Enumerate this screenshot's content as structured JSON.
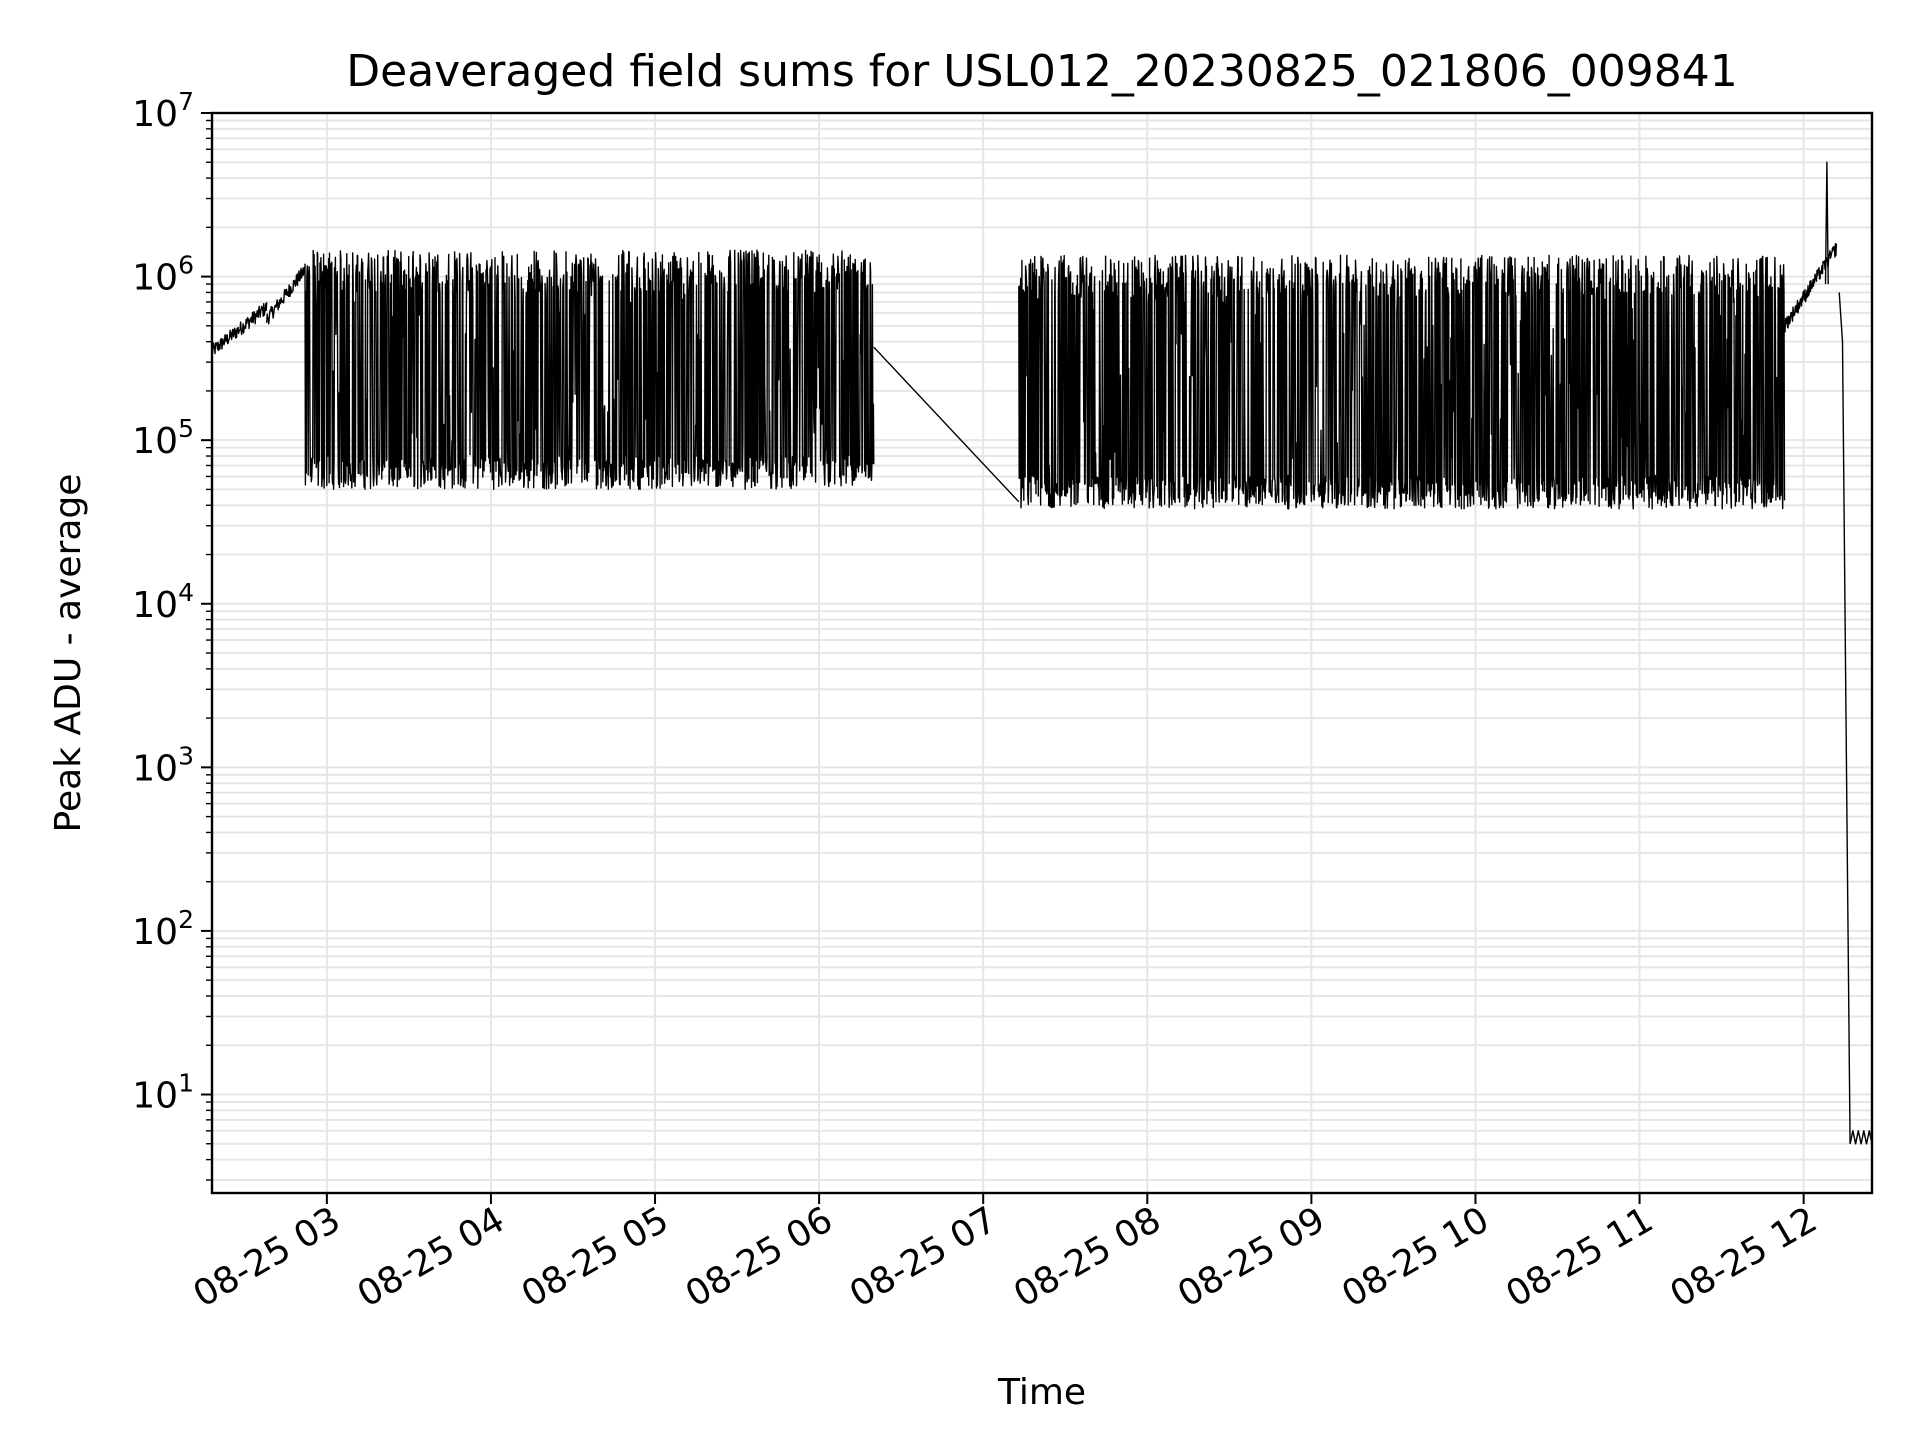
{
  "chart_data": {
    "type": "line",
    "title": "Deaveraged field sums for USL012_20230825_021806_009841",
    "xlabel": "Time",
    "ylabel": "Peak ADU - average",
    "yscale": "log",
    "ylim": [
      2.5,
      10000000
    ],
    "xlim": [
      "2023-08-25 02:18",
      "2023-08-25 12:25"
    ],
    "grid": true,
    "x_ticks": [
      {
        "t": "2023-08-25 03:00",
        "label": "08-25 03"
      },
      {
        "t": "2023-08-25 04:00",
        "label": "08-25 04"
      },
      {
        "t": "2023-08-25 05:00",
        "label": "08-25 05"
      },
      {
        "t": "2023-08-25 06:00",
        "label": "08-25 06"
      },
      {
        "t": "2023-08-25 07:00",
        "label": "08-25 07"
      },
      {
        "t": "2023-08-25 08:00",
        "label": "08-25 08"
      },
      {
        "t": "2023-08-25 09:00",
        "label": "08-25 09"
      },
      {
        "t": "2023-08-25 10:00",
        "label": "08-25 10"
      },
      {
        "t": "2023-08-25 11:00",
        "label": "08-25 11"
      },
      {
        "t": "2023-08-25 12:00",
        "label": "08-25 12"
      }
    ],
    "y_ticks": [
      {
        "value": 10,
        "base": "10",
        "exp": "1"
      },
      {
        "value": 100,
        "base": "10",
        "exp": "2"
      },
      {
        "value": 1000,
        "base": "10",
        "exp": "3"
      },
      {
        "value": 10000,
        "base": "10",
        "exp": "4"
      },
      {
        "value": 100000,
        "base": "10",
        "exp": "5"
      },
      {
        "value": 1000000,
        "base": "10",
        "exp": "6"
      },
      {
        "value": 10000000,
        "base": "10",
        "exp": "7"
      }
    ],
    "series": [
      {
        "color": "#000000",
        "segments": [
          {
            "time_range": [
              "2023-08-25 02:18",
              "2023-08-25 02:38"
            ],
            "pattern": "smooth",
            "low": 350000,
            "high": 650000
          },
          {
            "time_range": [
              "2023-08-25 02:38",
              "2023-08-25 02:52"
            ],
            "pattern": "smooth",
            "low": 550000,
            "high": 1100000
          },
          {
            "time_range": [
              "2023-08-25 02:52",
              "2023-08-25 06:20"
            ],
            "pattern": "oscillating",
            "low": 50000,
            "high": 1450000
          },
          {
            "time_range": [
              "2023-08-25 06:20",
              "2023-08-25 07:13"
            ],
            "pattern": "gap-line",
            "low": 42000,
            "high": 370000
          },
          {
            "time_range": [
              "2023-08-25 07:13",
              "2023-08-25 11:53"
            ],
            "pattern": "oscillating",
            "low": 38000,
            "high": 1350000
          },
          {
            "time_range": [
              "2023-08-25 11:53",
              "2023-08-25 12:12"
            ],
            "pattern": "smooth",
            "low": 500000,
            "high": 1500000
          },
          {
            "time_range": [
              "2023-08-25 12:08",
              "2023-08-25 12:09"
            ],
            "pattern": "spike",
            "low": 900000,
            "high": 5000000
          },
          {
            "time_range": [
              "2023-08-25 12:13",
              "2023-08-25 12:17"
            ],
            "pattern": "drop",
            "low": 5,
            "high": 800000
          },
          {
            "time_range": [
              "2023-08-25 12:17",
              "2023-08-25 12:25"
            ],
            "pattern": "flat",
            "low": 5,
            "high": 6
          }
        ]
      }
    ]
  }
}
